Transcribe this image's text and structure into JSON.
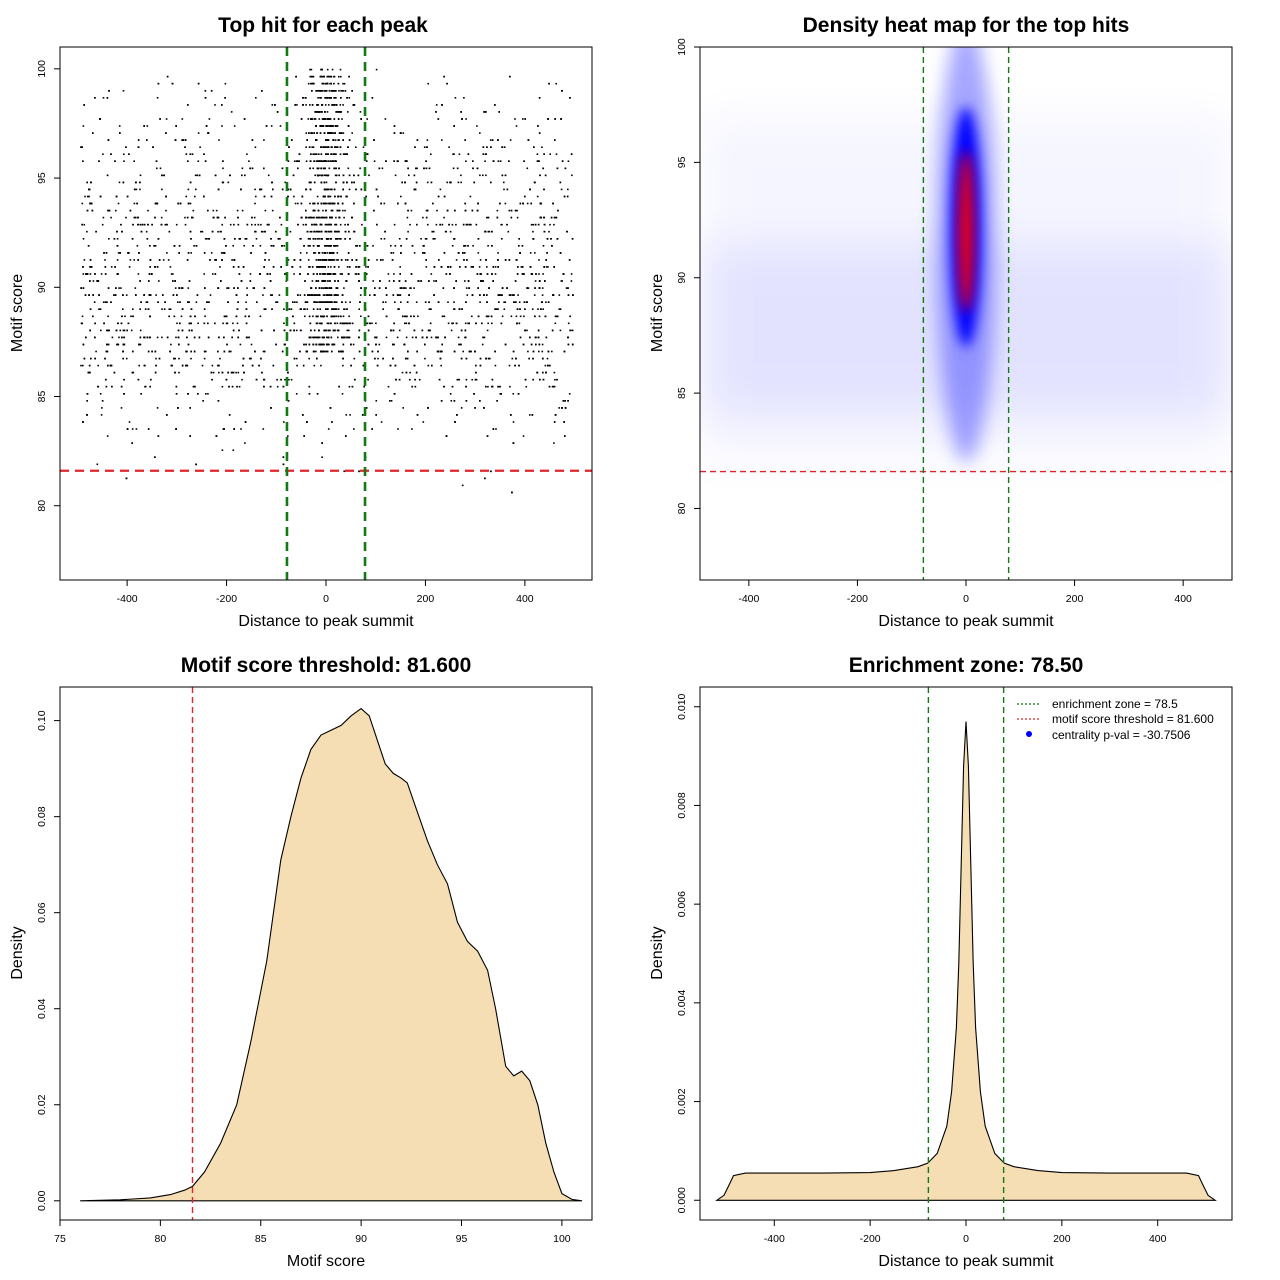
{
  "colors": {
    "threshold": "#e0262b",
    "zone": "#137a13",
    "fill": "#f5deb3",
    "points": "#000000",
    "legend_point": "#0000ff"
  },
  "chart_data": [
    {
      "type": "scatter",
      "title": "Top hit for each peak",
      "xlabel": "Distance to peak summit",
      "ylabel": "Motif score",
      "xlim": [
        -535,
        535
      ],
      "ylim": [
        76.6,
        101
      ],
      "xticks": [
        "-400",
        "-200",
        "0",
        "200",
        "400"
      ],
      "yticks": [
        "80",
        "85",
        "90",
        "95",
        "100"
      ],
      "threshold_y": 81.6,
      "zone_x": [
        -78.5,
        78.5
      ],
      "points_description": "dense cloud of points, x uniform on [-495, 495] with strong concentration near 0; y mostly 82-99, peaking around 88-90"
    },
    {
      "type": "heatmap",
      "title": "Density heat map for the top hits",
      "xlabel": "Distance to peak summit",
      "ylabel": "Motif score",
      "xlim": [
        -490,
        490
      ],
      "ylim": [
        76.9,
        100
      ],
      "xticks": [
        "-400",
        "-200",
        "0",
        "200",
        "400"
      ],
      "yticks": [
        "80",
        "85",
        "90",
        "95",
        "100"
      ],
      "threshold_y": 81.6,
      "zone_x": [
        -78.5,
        78.5
      ],
      "hotspot": {
        "x": 0,
        "y": 92
      },
      "color_scale": [
        "#ffffff",
        "#0000ff",
        "#ff0000"
      ]
    },
    {
      "type": "area",
      "title": "Motif score threshold: 81.600",
      "xlabel": "Motif score",
      "ylabel": "Density",
      "xlim": [
        75,
        101.5
      ],
      "ylim": [
        -0.004,
        0.107
      ],
      "xticks": [
        "75",
        "80",
        "85",
        "90",
        "95",
        "100"
      ],
      "yticks": [
        "0.00",
        "0.02",
        "0.04",
        "0.06",
        "0.08",
        "0.10"
      ],
      "threshold_x": 81.6,
      "x": [
        76,
        78,
        79.5,
        80.5,
        81.2,
        81.6,
        82.2,
        83,
        83.8,
        84.5,
        85.3,
        86,
        86.5,
        87,
        87.5,
        88,
        88.5,
        89,
        89.5,
        90,
        90.4,
        90.8,
        91.2,
        91.6,
        92,
        92.3,
        92.8,
        93.3,
        93.8,
        94.3,
        94.8,
        95.3,
        95.8,
        96.3,
        96.7,
        97.2,
        97.6,
        98,
        98.4,
        98.8,
        99.2,
        99.6,
        100,
        100.5,
        101
      ],
      "y": [
        0.0,
        0.0002,
        0.0006,
        0.0013,
        0.0022,
        0.003,
        0.006,
        0.012,
        0.02,
        0.033,
        0.05,
        0.071,
        0.08,
        0.088,
        0.094,
        0.097,
        0.098,
        0.099,
        0.101,
        0.1025,
        0.101,
        0.096,
        0.091,
        0.089,
        0.088,
        0.087,
        0.081,
        0.075,
        0.07,
        0.066,
        0.058,
        0.054,
        0.052,
        0.048,
        0.04,
        0.028,
        0.026,
        0.027,
        0.025,
        0.02,
        0.012,
        0.006,
        0.0015,
        0.0003,
        0.0
      ]
    },
    {
      "type": "area",
      "title": "Enrichment zone: 78.50",
      "xlabel": "Distance to peak summit",
      "ylabel": "Density",
      "xlim": [
        -555,
        555
      ],
      "ylim": [
        -0.0004,
        0.0104
      ],
      "xticks": [
        "-400",
        "-200",
        "0",
        "200",
        "400"
      ],
      "yticks": [
        "0.000",
        "0.002",
        "0.004",
        "0.006",
        "0.008",
        "0.010"
      ],
      "zone_x": [
        -78.5,
        78.5
      ],
      "x": [
        -520,
        -505,
        -495,
        -485,
        -460,
        -400,
        -300,
        -200,
        -150,
        -100,
        -80,
        -60,
        -40,
        -30,
        -20,
        -15,
        -10,
        -5,
        0,
        5,
        10,
        15,
        20,
        30,
        40,
        60,
        80,
        100,
        150,
        200,
        300,
        400,
        460,
        485,
        495,
        505,
        520
      ],
      "y": [
        0.0,
        0.0001,
        0.0003,
        0.0005,
        0.00055,
        0.00055,
        0.00055,
        0.00056,
        0.0006,
        0.00068,
        0.00075,
        0.00095,
        0.0015,
        0.0022,
        0.0035,
        0.0048,
        0.0068,
        0.0088,
        0.0097,
        0.0088,
        0.0068,
        0.0048,
        0.0035,
        0.0022,
        0.0015,
        0.00095,
        0.00075,
        0.00068,
        0.0006,
        0.00056,
        0.00055,
        0.00055,
        0.00055,
        0.0005,
        0.0003,
        0.0001,
        0.0
      ],
      "legend": [
        {
          "label": "enrichment zone = 78.5",
          "symbol": "dotted-line",
          "color": "#137a13"
        },
        {
          "label": "motif score threshold = 81.600",
          "symbol": "dotted-line",
          "color": "#e0262b"
        },
        {
          "label": "centrality p-val = -30.7506",
          "symbol": "point",
          "color": "#0000ff"
        }
      ],
      "legend_position": "top-right"
    }
  ]
}
